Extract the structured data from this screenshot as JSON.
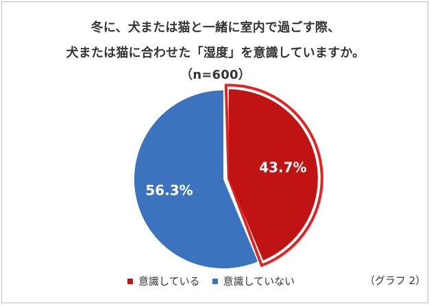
{
  "chart_data": {
    "type": "pie",
    "title_lines": [
      "冬に、犬または猫と一緒に室内で過ごす際、",
      "犬または猫に合わせた「湿度」を意識していますか。",
      "（n=600）"
    ],
    "slices": [
      {
        "name": "意識している",
        "value": 43.7,
        "label": "43.7%",
        "color": "#c01414",
        "highlighted": true
      },
      {
        "name": "意識していない",
        "value": 56.3,
        "label": "56.3%",
        "color": "#3b73bf",
        "highlighted": false
      }
    ],
    "legend_position": "bottom",
    "note": "（グラフ 2）"
  }
}
